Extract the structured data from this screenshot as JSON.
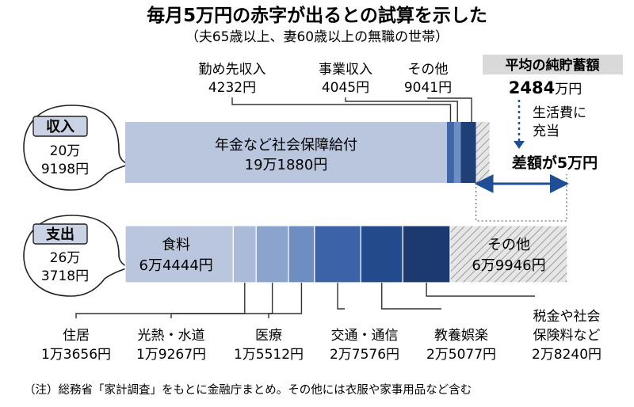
{
  "chart_data": {
    "type": "bar",
    "title": "毎月5万円の赤字が出るとの試算を示した",
    "subtitle": "（夫65歳以上、妻60歳以上の無職の世帯）",
    "income": {
      "label": "収入",
      "total_line1": "20万",
      "total_line2": "9198円",
      "total_yen": 209198,
      "segments": [
        {
          "name": "年金など社会保障給付",
          "value_label": "19万1880円",
          "value": 191880,
          "color": "#b9c6dd"
        },
        {
          "name": "勤め先収入",
          "value_label": "4232円",
          "value": 4232,
          "color": "#3f66a8"
        },
        {
          "name": "事業収入",
          "value_label": "4045円",
          "value": 4045,
          "color": "#6f8fc4"
        },
        {
          "name": "その他",
          "value_label": "9041円",
          "value": 9041,
          "color": "#1f3f78"
        }
      ]
    },
    "expense": {
      "label": "支出",
      "total_line1": "26万",
      "total_line2": "3718円",
      "total_yen": 263718,
      "segments": [
        {
          "name": "食料",
          "value_label": "6万4444円",
          "value": 64444,
          "color": "#b9c6dd"
        },
        {
          "name": "住居",
          "value_label": "1万3656円",
          "value": 13656,
          "color": "#a9bbd8"
        },
        {
          "name": "光熱・水道",
          "value_label": "1万9267円",
          "value": 19267,
          "color": "#8aa4cd"
        },
        {
          "name": "医療",
          "value_label": "1万5512円",
          "value": 15512,
          "color": "#6e8dc1"
        },
        {
          "name": "交通・通信",
          "value_label": "2万7576円",
          "value": 27576,
          "color": "#3c63a8"
        },
        {
          "name": "教養娯楽",
          "value_label": "2万5077円",
          "value": 25077,
          "color": "#234b8c"
        },
        {
          "name": "税金や社会保険料など",
          "name_lines": [
            "税金や社会",
            "保険料など"
          ],
          "value_label": "2万8240円",
          "value": 28240,
          "color": "#1c3a70"
        },
        {
          "name": "その他",
          "value_label": "6万9946円",
          "value": 69946,
          "color": "#dcdcdc"
        }
      ]
    },
    "savings_box": {
      "label": "平均の純貯蓄額",
      "value_num": "2484",
      "value_unit": "万円",
      "value_manyen": 2484
    },
    "arrow_note": [
      "生活費に",
      "充当"
    ],
    "deficit": {
      "label": "差額が5万円",
      "value_yen": 50000
    },
    "footnote": "（注）総務省「家計調査」をもとに金融庁まとめ。その他には衣服や家事用品など含む"
  }
}
